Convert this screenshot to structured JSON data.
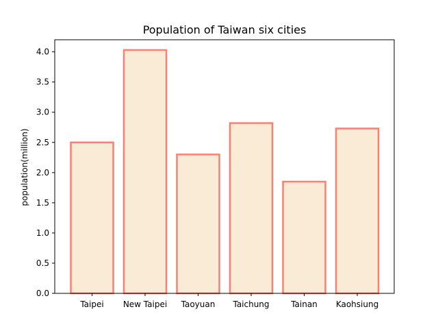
{
  "chart_data": {
    "type": "bar",
    "title": "Population of Taiwan six cities",
    "xlabel": "",
    "ylabel": "population(million)",
    "categories": [
      "Taipei",
      "New Taipei",
      "Taoyuan",
      "Taichung",
      "Tainan",
      "Kaohsiung"
    ],
    "values": [
      2.5,
      4.03,
      2.3,
      2.82,
      1.85,
      2.73
    ],
    "ylim": [
      0,
      4.2
    ],
    "yticks": [
      "0.0",
      "0.5",
      "1.0",
      "1.5",
      "2.0",
      "2.5",
      "3.0",
      "3.5",
      "4.0"
    ],
    "grid": false,
    "colors": {
      "fill": "#FAEBD7",
      "edge": "#FA8072"
    }
  }
}
